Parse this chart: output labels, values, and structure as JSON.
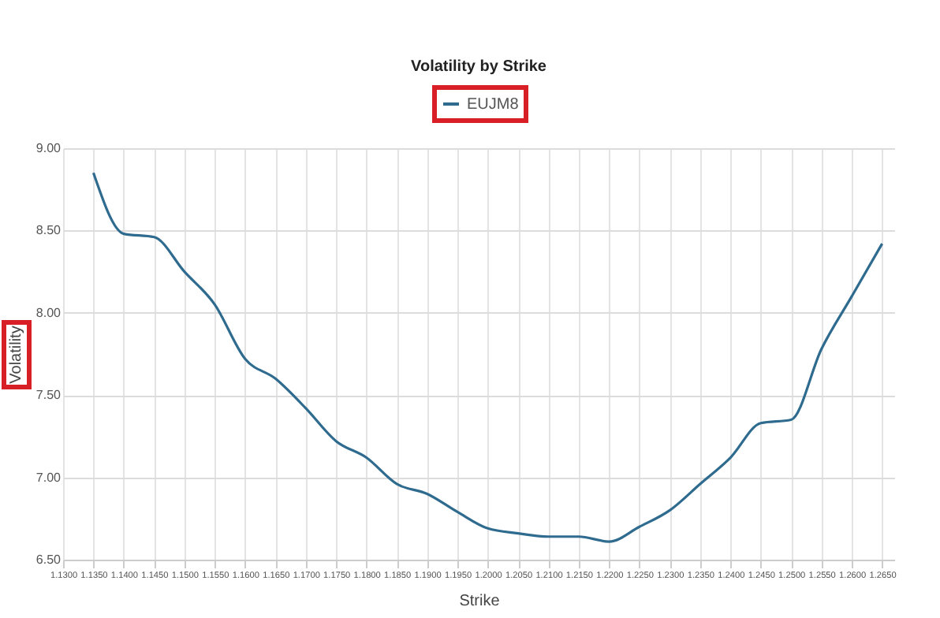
{
  "chart_data": {
    "type": "line",
    "title": "Volatility by Strike",
    "xlabel": "Strike",
    "ylabel": "Volatility",
    "x": [
      1.135,
      1.14,
      1.145,
      1.15,
      1.155,
      1.16,
      1.165,
      1.17,
      1.175,
      1.18,
      1.185,
      1.19,
      1.195,
      1.2,
      1.205,
      1.21,
      1.215,
      1.22,
      1.225,
      1.23,
      1.235,
      1.24,
      1.245,
      1.25,
      1.255,
      1.26,
      1.265
    ],
    "series": [
      {
        "name": "EUJM8",
        "color": "#2f6b8f",
        "values": [
          8.85,
          8.48,
          8.46,
          8.25,
          8.05,
          7.72,
          7.6,
          7.42,
          7.22,
          7.12,
          6.96,
          6.9,
          6.79,
          6.69,
          6.66,
          6.64,
          6.64,
          6.61,
          6.7,
          6.8,
          6.96,
          7.12,
          7.33,
          7.35,
          7.78,
          8.1,
          8.42
        ]
      }
    ],
    "xlim": [
      1.13,
      1.267
    ],
    "xticks": [
      {
        "value": 1.13,
        "label": "1.1300"
      },
      {
        "value": 1.135,
        "label": "1.1350"
      },
      {
        "value": 1.14,
        "label": "1.1400"
      },
      {
        "value": 1.145,
        "label": "1.1450"
      },
      {
        "value": 1.15,
        "label": "1.1500"
      },
      {
        "value": 1.155,
        "label": "1.1550"
      },
      {
        "value": 1.16,
        "label": "1.1600"
      },
      {
        "value": 1.165,
        "label": "1.1650"
      },
      {
        "value": 1.17,
        "label": "1.1700"
      },
      {
        "value": 1.175,
        "label": "1.1750"
      },
      {
        "value": 1.18,
        "label": "1.1800"
      },
      {
        "value": 1.185,
        "label": "1.1850"
      },
      {
        "value": 1.19,
        "label": "1.1900"
      },
      {
        "value": 1.195,
        "label": "1.1950"
      },
      {
        "value": 1.2,
        "label": "1.2000"
      },
      {
        "value": 1.205,
        "label": "1.2050"
      },
      {
        "value": 1.21,
        "label": "1.2100"
      },
      {
        "value": 1.215,
        "label": "1.2150"
      },
      {
        "value": 1.22,
        "label": "1.2200"
      },
      {
        "value": 1.225,
        "label": "1.2250"
      },
      {
        "value": 1.23,
        "label": "1.2300"
      },
      {
        "value": 1.235,
        "label": "1.2350"
      },
      {
        "value": 1.24,
        "label": "1.2400"
      },
      {
        "value": 1.245,
        "label": "1.2450"
      },
      {
        "value": 1.25,
        "label": "1.2500"
      },
      {
        "value": 1.255,
        "label": "1.2550"
      },
      {
        "value": 1.26,
        "label": "1.2600"
      },
      {
        "value": 1.265,
        "label": "1.2650"
      }
    ],
    "ylim": [
      6.5,
      9.0
    ],
    "yticks": [
      {
        "value": 6.5,
        "label": "6.50"
      },
      {
        "value": 7.0,
        "label": "7.00"
      },
      {
        "value": 7.5,
        "label": "7.50"
      },
      {
        "value": 8.0,
        "label": "8.00"
      },
      {
        "value": 8.5,
        "label": "8.50"
      },
      {
        "value": 9.0,
        "label": "9.00"
      }
    ],
    "grid": true,
    "legend": "top",
    "marker": "none",
    "line_style": "solid"
  }
}
